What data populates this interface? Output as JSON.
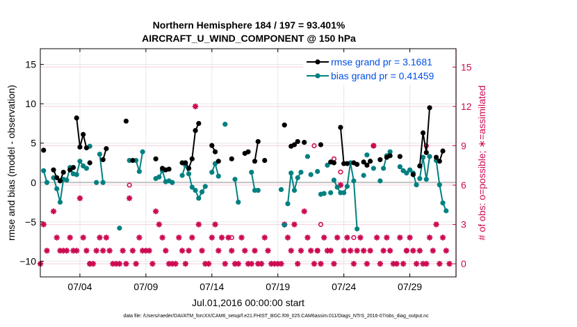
{
  "chart_data": {
    "type": "line",
    "title": "Northern Hemisphere 184 / 197 = 93.401%",
    "subtitle": "AIRCRAFT_U_WIND_COMPONENT @ 150 hPa",
    "xlabel": "Jul.01,2016 00:00:00 start",
    "ylabel": "rmse and bias (model - observation)",
    "y2label": "# of obs: o=possible; ∗=assimilated",
    "footnote": "data file: /Users/raeder/DAI/ATM_forcXX/CAM6_setup/f.e21.FHIST_BGC.f09_025.CAM6assim.011/Diags_NTrS_2016-07/obs_diag_output.nc",
    "xlim": [
      1,
      32.5
    ],
    "ylim": [
      -12,
      17
    ],
    "y2lim": [
      -1.0,
      16.4
    ],
    "xticks": [
      4,
      9,
      14,
      19,
      24,
      29
    ],
    "xtick_labels": [
      "07/04",
      "07/09",
      "07/14",
      "07/19",
      "07/24",
      "07/29"
    ],
    "yticks": [
      -10,
      -5,
      0,
      5,
      10,
      15
    ],
    "y2ticks": [
      0,
      3,
      6,
      9,
      12,
      15
    ],
    "colors": {
      "rmse": "#000000",
      "bias": "#008080",
      "obs": "#cc0a52",
      "zero": "#c0c0c0",
      "y2": "#cc0a52",
      "legend_text": "#0050e6"
    },
    "legend": [
      {
        "name": "rmse grand pr = 3.1681",
        "color": "#000000"
      },
      {
        "name": "bias grand pr = 0.41459",
        "color": "#008080"
      }
    ],
    "series": [
      {
        "name": "rmse",
        "segments": [
          [
            [
              1.25,
              4.1
            ]
          ],
          [
            [
              2.0,
              1.6
            ],
            [
              2.25,
              0.6
            ],
            [
              2.5,
              0.2
            ],
            [
              2.75,
              1.3
            ]
          ],
          [
            [
              3.25,
              1.6
            ]
          ],
          [
            [
              3.5,
              1.9
            ]
          ],
          [
            [
              3.75,
              8.2
            ],
            [
              4.0,
              4.5
            ],
            [
              4.25,
              6.1
            ],
            [
              4.5,
              4.4
            ]
          ],
          [
            [
              4.75,
              2.5
            ]
          ],
          [
            [
              5.75,
              2.9
            ],
            [
              6.0,
              4.3
            ]
          ],
          [
            [
              7.5,
              7.8
            ]
          ],
          [
            [
              8.0,
              2.8
            ]
          ],
          [
            [
              9.75,
              3.0
            ]
          ],
          [
            [
              10.25,
              1.8
            ],
            [
              10.5,
              1.6
            ],
            [
              10.75,
              1.7
            ]
          ],
          [
            [
              11.75,
              2.5
            ],
            [
              12.0,
              2.5
            ],
            [
              12.25,
              1.8
            ],
            [
              12.5,
              3.0
            ],
            [
              12.75,
              6.6
            ],
            [
              13.0,
              7.5
            ]
          ],
          [
            [
              14.0,
              4.7
            ],
            [
              14.25,
              3.9
            ]
          ],
          [
            [
              14.5,
              2.7
            ]
          ],
          [
            [
              15.5,
              3.0
            ]
          ],
          [
            [
              16.5,
              3.7
            ],
            [
              16.75,
              3.9
            ]
          ],
          [
            [
              17.25,
              2.7
            ],
            [
              17.5,
              5.2
            ]
          ],
          [
            [
              18.0,
              2.8
            ]
          ],
          [
            [
              19.5,
              7.3
            ]
          ],
          [
            [
              20.0,
              4.6
            ],
            [
              20.25,
              4.8
            ],
            [
              20.5,
              5.2
            ]
          ],
          [
            [
              21.0,
              5.1
            ]
          ],
          [
            [
              22.25,
              4.8
            ]
          ],
          [
            [
              23.0,
              2.6
            ],
            [
              23.25,
              2.5
            ]
          ],
          [
            [
              23.75,
              7.0
            ],
            [
              24.0,
              2.4
            ],
            [
              24.25,
              2.4
            ]
          ],
          [
            [
              24.75,
              2.5
            ],
            [
              25.0,
              2.3
            ]
          ],
          [
            [
              25.5,
              2.6
            ],
            [
              25.75,
              2.2
            ],
            [
              26.0,
              2.7
            ]
          ],
          [
            [
              26.75,
              2.9
            ]
          ],
          [
            [
              27.25,
              3.2
            ],
            [
              27.5,
              3.4
            ]
          ],
          [
            [
              28.25,
              3.3
            ]
          ],
          [
            [
              29.25,
              1.0
            ]
          ],
          [
            [
              29.75,
              2.1
            ],
            [
              30.0,
              6.3
            ],
            [
              30.25,
              3.8
            ],
            [
              30.5,
              9.5
            ]
          ],
          [
            [
              31.0,
              3.2
            ],
            [
              31.25,
              2.7
            ],
            [
              31.5,
              4.0
            ]
          ]
        ]
      },
      {
        "name": "bias",
        "segments": [
          [
            [
              1.25,
              1.5
            ],
            [
              1.5,
              0.0
            ]
          ],
          [
            [
              2.0,
              0.6
            ],
            [
              2.25,
              -0.8
            ],
            [
              2.5,
              -2.5
            ],
            [
              2.75,
              0.4
            ],
            [
              3.0,
              0.3
            ],
            [
              3.25,
              1.9
            ],
            [
              3.5,
              1.1
            ],
            [
              3.75,
              1.0
            ],
            [
              4.0,
              2.7
            ],
            [
              4.25,
              2.1
            ],
            [
              4.5,
              1.8
            ]
          ],
          [
            [
              4.75,
              4.6
            ]
          ],
          [
            [
              5.25,
              0.0
            ]
          ],
          [
            [
              5.5,
              3.6
            ],
            [
              5.75,
              0.0
            ]
          ],
          [
            [
              7.0,
              -5.8
            ]
          ],
          [
            [
              7.75,
              2.8
            ]
          ],
          [
            [
              8.25,
              2.8
            ],
            [
              8.5,
              1.4
            ],
            [
              8.75,
              3.9
            ]
          ],
          [
            [
              9.75,
              0.5
            ],
            [
              10.0,
              0.7
            ],
            [
              10.25,
              1.5
            ],
            [
              10.5,
              0.1
            ],
            [
              10.75,
              0.2
            ],
            [
              11.0,
              0.0
            ]
          ],
          [
            [
              11.75,
              0.9
            ],
            [
              12.0,
              2.2
            ],
            [
              12.25,
              1.1
            ],
            [
              12.5,
              -0.6
            ],
            [
              12.75,
              -1.0
            ],
            [
              13.0,
              -2.0
            ],
            [
              13.25,
              -1.2
            ],
            [
              13.5,
              -0.5
            ]
          ],
          [
            [
              14.0,
              1.3
            ],
            [
              14.25,
              2.4
            ],
            [
              14.5,
              0.8
            ]
          ],
          [
            [
              15.0,
              7.4
            ]
          ],
          [
            [
              15.75,
              0.4
            ],
            [
              16.0,
              -2.5
            ]
          ],
          [
            [
              17.0,
              1.3
            ],
            [
              17.25,
              -1.0
            ],
            [
              17.5,
              -1.0
            ]
          ],
          [
            [
              19.25,
              -0.9
            ]
          ],
          [
            [
              19.5,
              -5.4
            ]
          ],
          [
            [
              19.75,
              -2.7
            ],
            [
              20.0,
              1.2
            ],
            [
              20.25,
              -1.0
            ],
            [
              20.5,
              0.6
            ],
            [
              20.75,
              1.3
            ]
          ],
          [
            [
              21.25,
              3.3
            ]
          ],
          [
            [
              21.5,
              1.0
            ]
          ],
          [
            [
              22.0,
              1.4
            ]
          ],
          [
            [
              22.25,
              -1.5
            ],
            [
              22.5,
              -1.4
            ]
          ],
          [
            [
              22.75,
              2.2
            ]
          ],
          [
            [
              23.0,
              -1.3
            ]
          ],
          [
            [
              23.25,
              0.3
            ],
            [
              23.5,
              -0.6
            ],
            [
              23.75,
              -1.3
            ],
            [
              24.0,
              -1.3
            ],
            [
              24.25,
              -0.5
            ],
            [
              24.5,
              2.5
            ],
            [
              24.75,
              0.2
            ],
            [
              25.0,
              -5.9
            ]
          ],
          [
            [
              25.5,
              0.9
            ]
          ],
          [
            [
              25.75,
              3.5
            ]
          ],
          [
            [
              26.25,
              1.8
            ]
          ],
          [
            [
              26.75,
              0.2
            ]
          ],
          [
            [
              27.0,
              1.8
            ],
            [
              27.25,
              3.4
            ],
            [
              27.5,
              3.9
            ]
          ],
          [
            [
              28.25,
              2.0
            ],
            [
              28.5,
              1.5
            ],
            [
              28.75,
              1.2
            ],
            [
              29.0,
              1.6
            ],
            [
              29.25,
              1.2
            ],
            [
              29.5,
              -0.3
            ]
          ],
          [
            [
              29.75,
              0.5
            ],
            [
              30.0,
              3.2
            ],
            [
              30.25,
              0.4
            ],
            [
              30.5,
              3.3
            ]
          ],
          [
            [
              31.0,
              2.8
            ],
            [
              31.25,
              -0.3
            ],
            [
              31.5,
              -2.6
            ],
            [
              31.75,
              -3.6
            ]
          ]
        ]
      }
    ],
    "obs_assimilated": [
      [
        1.0,
        0
      ],
      [
        1.25,
        3
      ],
      [
        1.5,
        1
      ],
      [
        2.0,
        4
      ],
      [
        2.25,
        2
      ],
      [
        2.5,
        1
      ],
      [
        2.75,
        1
      ],
      [
        3.0,
        1
      ],
      [
        3.25,
        2
      ],
      [
        3.5,
        1
      ],
      [
        3.75,
        1
      ],
      [
        4.0,
        5
      ],
      [
        4.25,
        2
      ],
      [
        4.5,
        1
      ],
      [
        4.75,
        0
      ],
      [
        5.0,
        0
      ],
      [
        5.25,
        1
      ],
      [
        5.5,
        2
      ],
      [
        5.75,
        1
      ],
      [
        6.0,
        2
      ],
      [
        6.25,
        1
      ],
      [
        6.5,
        0
      ],
      [
        6.75,
        0
      ],
      [
        7.0,
        0
      ],
      [
        7.25,
        1
      ],
      [
        7.5,
        0
      ],
      [
        7.75,
        5
      ],
      [
        8.0,
        1
      ],
      [
        8.25,
        0
      ],
      [
        8.5,
        2
      ],
      [
        8.75,
        1
      ],
      [
        9.0,
        1
      ],
      [
        9.25,
        1
      ],
      [
        9.5,
        0
      ],
      [
        9.75,
        4
      ],
      [
        10.0,
        3
      ],
      [
        10.25,
        2
      ],
      [
        10.5,
        1
      ],
      [
        10.75,
        0
      ],
      [
        11.0,
        0
      ],
      [
        11.25,
        0
      ],
      [
        11.5,
        2
      ],
      [
        11.75,
        1
      ],
      [
        12.0,
        0
      ],
      [
        12.25,
        1
      ],
      [
        12.5,
        2
      ],
      [
        12.75,
        12
      ],
      [
        13.0,
        3
      ],
      [
        13.25,
        1
      ],
      [
        13.5,
        0
      ],
      [
        13.75,
        0
      ],
      [
        14.0,
        2
      ],
      [
        14.25,
        3
      ],
      [
        14.5,
        1
      ],
      [
        14.75,
        2
      ],
      [
        15.0,
        0
      ],
      [
        15.25,
        2
      ],
      [
        15.5,
        1
      ],
      [
        15.75,
        0
      ],
      [
        16.0,
        0
      ],
      [
        16.25,
        2
      ],
      [
        16.5,
        1
      ],
      [
        16.75,
        0
      ],
      [
        17.0,
        0
      ],
      [
        17.25,
        1
      ],
      [
        17.5,
        0
      ],
      [
        17.75,
        0
      ],
      [
        18.0,
        2
      ],
      [
        18.25,
        1
      ],
      [
        18.5,
        0
      ],
      [
        18.75,
        0
      ],
      [
        19.0,
        0
      ],
      [
        19.25,
        0
      ],
      [
        19.5,
        3
      ],
      [
        19.75,
        2
      ],
      [
        20.0,
        1
      ],
      [
        20.25,
        3
      ],
      [
        20.5,
        0
      ],
      [
        20.75,
        1
      ],
      [
        21.0,
        4
      ],
      [
        21.25,
        2
      ],
      [
        21.5,
        1
      ],
      [
        21.75,
        0
      ],
      [
        22.0,
        1
      ],
      [
        22.25,
        0
      ],
      [
        22.5,
        2
      ],
      [
        22.75,
        1
      ],
      [
        23.0,
        1
      ],
      [
        23.25,
        0
      ],
      [
        23.5,
        2
      ],
      [
        23.75,
        6
      ],
      [
        24.0,
        1
      ],
      [
        24.25,
        2
      ],
      [
        24.5,
        1
      ],
      [
        24.75,
        0
      ],
      [
        25.0,
        1
      ],
      [
        25.25,
        2
      ],
      [
        25.5,
        1
      ],
      [
        25.75,
        0
      ],
      [
        26.0,
        1
      ],
      [
        26.25,
        9
      ],
      [
        26.5,
        2
      ],
      [
        26.75,
        0
      ],
      [
        27.0,
        1
      ],
      [
        27.25,
        2
      ],
      [
        27.5,
        1
      ],
      [
        27.75,
        0
      ],
      [
        28.0,
        0
      ],
      [
        28.25,
        2
      ],
      [
        28.5,
        0
      ],
      [
        28.75,
        1
      ],
      [
        29.0,
        2
      ],
      [
        29.25,
        1
      ],
      [
        29.5,
        0
      ],
      [
        29.75,
        1
      ],
      [
        30.0,
        0
      ],
      [
        30.25,
        0
      ],
      [
        30.5,
        2
      ],
      [
        30.75,
        1
      ],
      [
        31.0,
        3
      ],
      [
        31.25,
        0
      ],
      [
        31.5,
        2
      ],
      [
        31.75,
        1
      ],
      [
        32.0,
        0
      ]
    ],
    "obs_possible": [
      [
        4.75,
        0
      ],
      [
        7.75,
        6
      ],
      [
        15.5,
        2
      ],
      [
        21.75,
        9
      ],
      [
        22.0,
        1
      ],
      [
        22.25,
        3
      ],
      [
        23.25,
        8
      ],
      [
        23.75,
        7
      ],
      [
        24.75,
        2
      ],
      [
        26.25,
        9
      ],
      [
        28.75,
        1
      ],
      [
        30.25,
        9
      ]
    ]
  }
}
